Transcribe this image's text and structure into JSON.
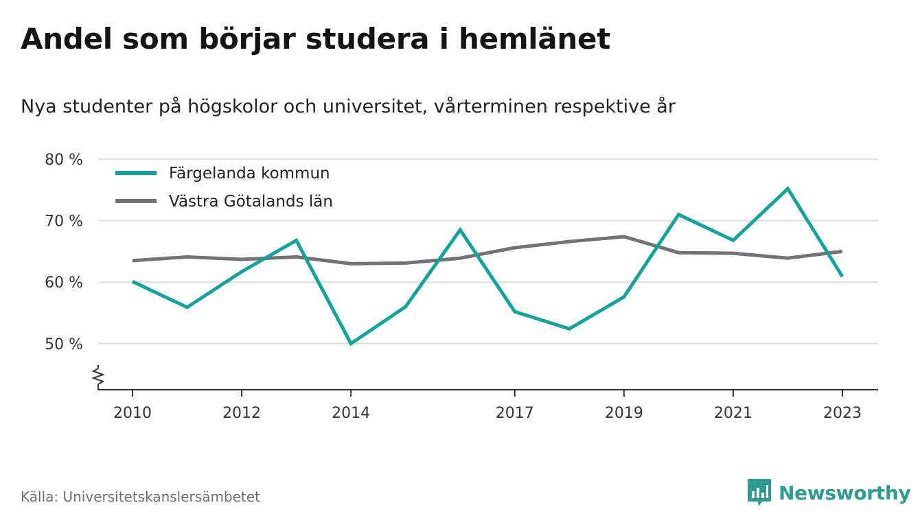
{
  "title": "Andel som börjar studera i hemlänet",
  "subtitle": "Nya studenter på högskolor och universitet, vårterminen respektive år",
  "source": "Källa: Universitetskanslersämbetet",
  "brand": "Newsworthy",
  "colors": {
    "accent": "#12a39a",
    "secondary": "#737277",
    "brand": "#2f9c92"
  },
  "chart_data": {
    "type": "line",
    "x": [
      2010,
      2011,
      2012,
      2013,
      2014,
      2015,
      2016,
      2017,
      2018,
      2019,
      2020,
      2021,
      2022,
      2023
    ],
    "series": [
      {
        "name": "Färgelanda kommun",
        "color": "#12a39a",
        "values": [
          60.1,
          55.9,
          61.7,
          66.8,
          50.0,
          56.0,
          68.5,
          55.2,
          52.4,
          57.6,
          71.0,
          66.8,
          75.2,
          60.9
        ]
      },
      {
        "name": "Västra Götalands län",
        "color": "#737277",
        "values": [
          63.5,
          64.1,
          63.7,
          64.1,
          63.0,
          63.1,
          63.9,
          65.6,
          66.6,
          67.4,
          64.8,
          64.7,
          63.9,
          65.0
        ]
      }
    ],
    "xticks": [
      2010,
      2012,
      2014,
      2017,
      2019,
      2021,
      2023
    ],
    "yticks": [
      50,
      60,
      70,
      80
    ],
    "ytick_labels": [
      "50 %",
      "60 %",
      "70 %",
      "80 %"
    ],
    "ylim": [
      42.5,
      80
    ],
    "y_axis_break": true,
    "grid": true,
    "legend_position": "top-left"
  }
}
